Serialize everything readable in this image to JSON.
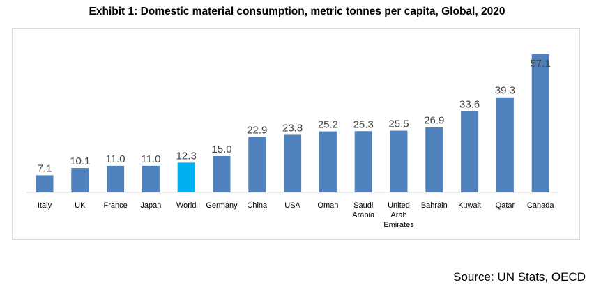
{
  "chart_data": {
    "type": "bar",
    "title": "Exhibit 1: Domestic material consumption, metric tonnes per capita, Global, 2020",
    "categories": [
      "Italy",
      "UK",
      "France",
      "Japan",
      "World",
      "Germany",
      "China",
      "USA",
      "Oman",
      "Saudi Arabia",
      "United Arab Emirates",
      "Bahrain",
      "Kuwait",
      "Qatar",
      "Canada"
    ],
    "category_lines": [
      [
        "Italy"
      ],
      [
        "UK"
      ],
      [
        "France"
      ],
      [
        "Japan"
      ],
      [
        "World"
      ],
      [
        "Germany"
      ],
      [
        "China"
      ],
      [
        "USA"
      ],
      [
        "Oman"
      ],
      [
        "Saudi",
        "Arabia"
      ],
      [
        "United",
        "Arab",
        "Emirates"
      ],
      [
        "Bahrain"
      ],
      [
        "Kuwait"
      ],
      [
        "Qatar"
      ],
      [
        "Canada"
      ]
    ],
    "values": [
      7.1,
      10.1,
      11.0,
      11.0,
      12.3,
      15.0,
      22.9,
      23.8,
      25.2,
      25.3,
      25.5,
      26.9,
      33.6,
      39.3,
      57.1
    ],
    "data_labels": [
      "7.1",
      "10.1",
      "11.0",
      "11.0",
      "12.3",
      "15.0",
      "22.9",
      "23.8",
      "25.2",
      "25.3",
      "25.5",
      "26.9",
      "33.6",
      "39.3",
      "57.1"
    ],
    "ylim": [
      0,
      57.1
    ],
    "grid": false,
    "legend": "none",
    "colors": {
      "default": "#4f81bd",
      "highlight": "#00b0f0",
      "highlight_category": "World"
    }
  },
  "source": "Source: UN Stats, OECD"
}
